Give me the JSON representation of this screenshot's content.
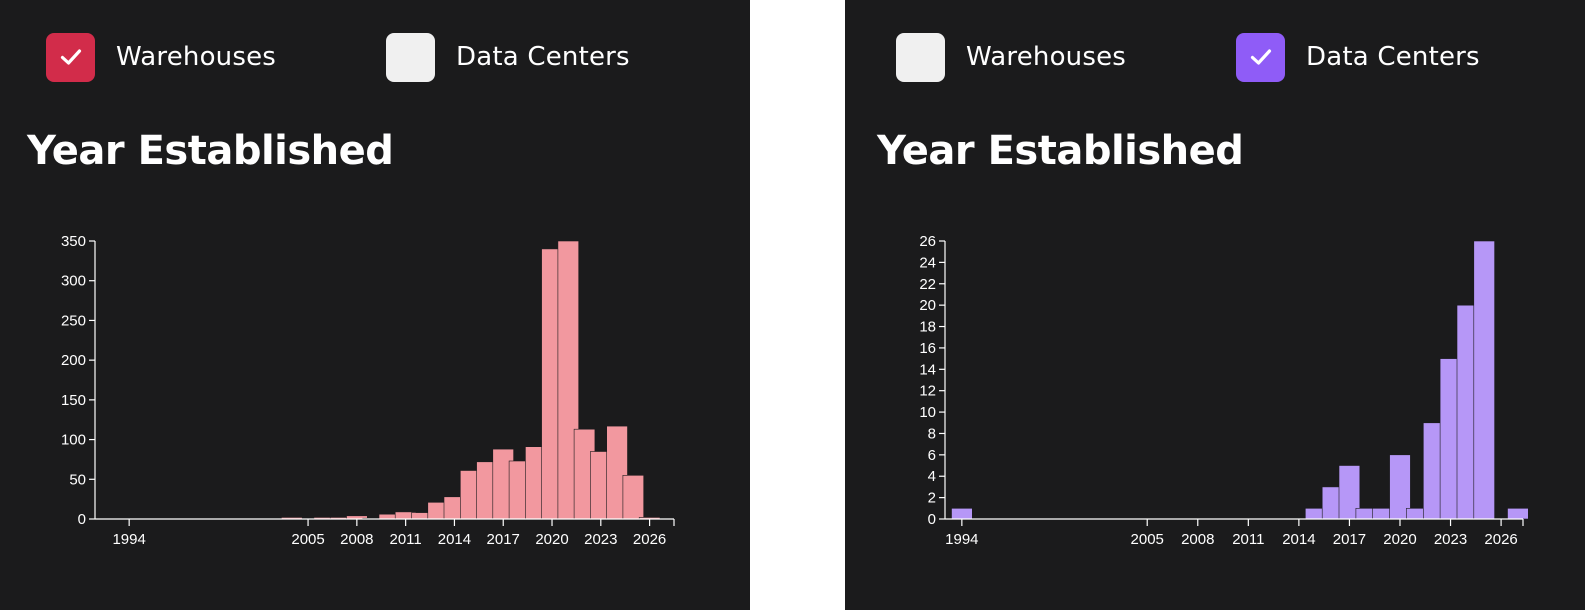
{
  "panels": [
    {
      "legend": [
        {
          "label": "Warehouses",
          "checked": true,
          "color": "#d22c4a"
        },
        {
          "label": "Data Centers",
          "checked": false,
          "color": "#f0f0f0"
        }
      ],
      "title": "Year Established",
      "chart_data": {
        "type": "bar",
        "title": "",
        "xlabel": "",
        "ylabel": "",
        "bar_color": "#f2989f",
        "x_ticks": [
          1994,
          2005,
          2008,
          2011,
          2014,
          2017,
          2020,
          2023,
          2026
        ],
        "y_ticks": [
          0,
          50,
          100,
          150,
          200,
          250,
          300,
          350
        ],
        "ylim": [
          0,
          350
        ],
        "xlim": [
          1994,
          2028
        ],
        "bars": [
          {
            "year": 2004,
            "value": 2
          },
          {
            "year": 2006,
            "value": 2
          },
          {
            "year": 2007,
            "value": 2
          },
          {
            "year": 2008,
            "value": 4
          },
          {
            "year": 2009,
            "value": 1
          },
          {
            "year": 2010,
            "value": 6
          },
          {
            "year": 2011,
            "value": 9
          },
          {
            "year": 2012,
            "value": 8
          },
          {
            "year": 2013,
            "value": 21
          },
          {
            "year": 2014,
            "value": 28
          },
          {
            "year": 2015,
            "value": 61
          },
          {
            "year": 2016,
            "value": 72
          },
          {
            "year": 2017,
            "value": 88
          },
          {
            "year": 2018,
            "value": 73
          },
          {
            "year": 2019,
            "value": 91
          },
          {
            "year": 2020,
            "value": 340
          },
          {
            "year": 2021,
            "value": 350
          },
          {
            "year": 2022,
            "value": 113
          },
          {
            "year": 2023,
            "value": 85
          },
          {
            "year": 2024,
            "value": 117
          },
          {
            "year": 2025,
            "value": 55
          },
          {
            "year": 2026,
            "value": 2
          }
        ]
      }
    },
    {
      "legend": [
        {
          "label": "Warehouses",
          "checked": false,
          "color": "#f0f0f0"
        },
        {
          "label": "Data Centers",
          "checked": true,
          "color": "#8f5cf7"
        }
      ],
      "title": "Year Established",
      "chart_data": {
        "type": "bar",
        "title": "",
        "xlabel": "",
        "ylabel": "",
        "bar_color": "#b697f7",
        "x_ticks": [
          1994,
          2005,
          2008,
          2011,
          2014,
          2017,
          2020,
          2023,
          2026
        ],
        "y_ticks": [
          0,
          2,
          4,
          6,
          8,
          10,
          12,
          14,
          16,
          18,
          20,
          22,
          24,
          26
        ],
        "ylim": [
          0,
          26
        ],
        "xlim": [
          1994,
          2028
        ],
        "bars": [
          {
            "year": 1994,
            "value": 1
          },
          {
            "year": 2015,
            "value": 1
          },
          {
            "year": 2016,
            "value": 3
          },
          {
            "year": 2017,
            "value": 5
          },
          {
            "year": 2018,
            "value": 1
          },
          {
            "year": 2019,
            "value": 1
          },
          {
            "year": 2020,
            "value": 6
          },
          {
            "year": 2021,
            "value": 1
          },
          {
            "year": 2022,
            "value": 9
          },
          {
            "year": 2023,
            "value": 15
          },
          {
            "year": 2024,
            "value": 20
          },
          {
            "year": 2025,
            "value": 26
          },
          {
            "year": 2027,
            "value": 1
          }
        ]
      }
    }
  ]
}
